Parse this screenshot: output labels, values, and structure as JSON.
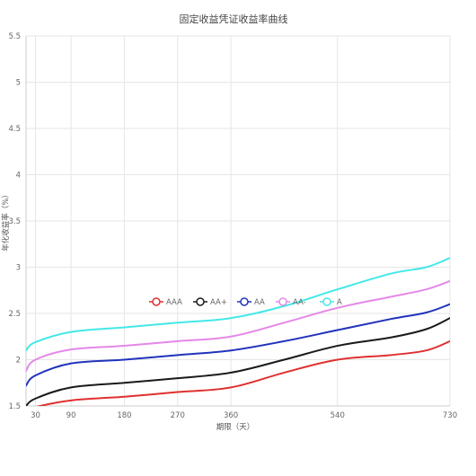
{
  "chart_data": {
    "type": "line",
    "title": "固定收益凭证收益率曲线",
    "xlabel": "期限（天）",
    "ylabel": "年化收益率（%）",
    "xlim": [
      14,
      730
    ],
    "ylim": [
      1.5,
      5.5
    ],
    "x_ticks": [
      30,
      90,
      180,
      270,
      360,
      540,
      730
    ],
    "y_ticks": [
      1.5,
      2,
      2.5,
      3,
      3.5,
      4,
      4.5,
      5,
      5.5
    ],
    "y_tick_labels": [
      "1.5",
      "2",
      "2.5",
      "3",
      "3.5",
      "4",
      "4.5",
      "5",
      "5.5"
    ],
    "grid": true,
    "legend_position": "center",
    "series": [
      {
        "name": "AAA",
        "color": "#e03030",
        "points": [
          [
            14,
            1.46
          ],
          [
            30,
            1.49
          ],
          [
            90,
            1.56
          ],
          [
            180,
            1.6
          ],
          [
            270,
            1.65
          ],
          [
            360,
            1.7
          ],
          [
            450,
            1.86
          ],
          [
            540,
            2.0
          ],
          [
            630,
            2.05
          ],
          [
            690,
            2.1
          ],
          [
            730,
            2.2
          ]
        ]
      },
      {
        "name": "AA+",
        "color": "#1a1a1a",
        "points": [
          [
            14,
            1.5
          ],
          [
            30,
            1.58
          ],
          [
            90,
            1.7
          ],
          [
            180,
            1.75
          ],
          [
            270,
            1.8
          ],
          [
            360,
            1.86
          ],
          [
            450,
            2.0
          ],
          [
            540,
            2.15
          ],
          [
            630,
            2.24
          ],
          [
            690,
            2.33
          ],
          [
            730,
            2.45
          ]
        ]
      },
      {
        "name": "AA",
        "color": "#2233bb",
        "points": [
          [
            14,
            1.72
          ],
          [
            30,
            1.83
          ],
          [
            90,
            1.96
          ],
          [
            180,
            2.0
          ],
          [
            270,
            2.05
          ],
          [
            360,
            2.1
          ],
          [
            450,
            2.2
          ],
          [
            540,
            2.32
          ],
          [
            630,
            2.44
          ],
          [
            690,
            2.51
          ],
          [
            730,
            2.6
          ]
        ]
      },
      {
        "name": "AA-",
        "color": "#e488e8",
        "points": [
          [
            14,
            1.88
          ],
          [
            30,
            2.0
          ],
          [
            90,
            2.11
          ],
          [
            180,
            2.15
          ],
          [
            270,
            2.2
          ],
          [
            360,
            2.25
          ],
          [
            450,
            2.4
          ],
          [
            540,
            2.56
          ],
          [
            630,
            2.68
          ],
          [
            690,
            2.76
          ],
          [
            730,
            2.85
          ]
        ]
      },
      {
        "name": "A",
        "color": "#44e8e8",
        "points": [
          [
            14,
            2.1
          ],
          [
            30,
            2.19
          ],
          [
            90,
            2.3
          ],
          [
            180,
            2.35
          ],
          [
            270,
            2.4
          ],
          [
            360,
            2.45
          ],
          [
            450,
            2.58
          ],
          [
            540,
            2.76
          ],
          [
            630,
            2.93
          ],
          [
            690,
            3.0
          ],
          [
            730,
            3.1
          ]
        ]
      }
    ]
  }
}
